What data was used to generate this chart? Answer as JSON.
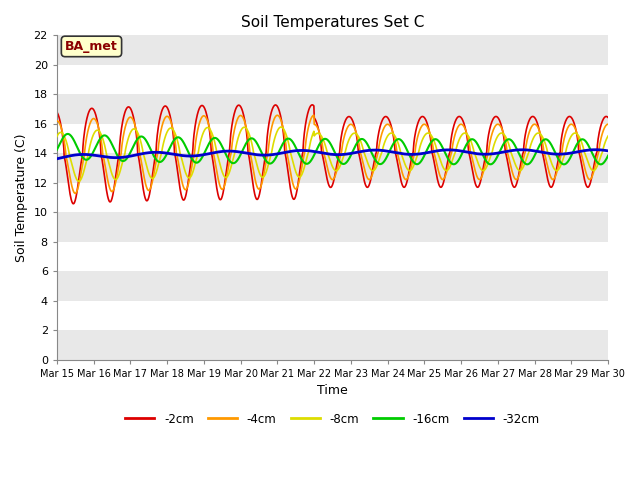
{
  "title": "Soil Temperatures Set C",
  "xlabel": "Time",
  "ylabel": "Soil Temperature (C)",
  "annotation": "BA_met",
  "ylim": [
    0,
    22
  ],
  "yticks": [
    0,
    2,
    4,
    6,
    8,
    10,
    12,
    14,
    16,
    18,
    20,
    22
  ],
  "fig_bg": "#ffffff",
  "plot_bg_bands": [
    [
      0,
      2,
      "#e8e8e8"
    ],
    [
      2,
      4,
      "#ffffff"
    ],
    [
      4,
      6,
      "#e8e8e8"
    ],
    [
      6,
      8,
      "#ffffff"
    ],
    [
      8,
      10,
      "#e8e8e8"
    ],
    [
      10,
      12,
      "#ffffff"
    ],
    [
      12,
      14,
      "#e8e8e8"
    ],
    [
      14,
      16,
      "#ffffff"
    ],
    [
      16,
      18,
      "#e8e8e8"
    ],
    [
      18,
      20,
      "#ffffff"
    ],
    [
      20,
      22,
      "#e8e8e8"
    ]
  ],
  "series_colors": [
    "#dd0000",
    "#ff9900",
    "#dddd00",
    "#00cc00",
    "#0000cc"
  ],
  "series_labels": [
    "-2cm",
    "-4cm",
    "-8cm",
    "-16cm",
    "-32cm"
  ],
  "series_linewidths": [
    1.2,
    1.2,
    1.2,
    1.5,
    2.0
  ],
  "x_start": 15,
  "x_end": 30,
  "xtick_positions": [
    15,
    16,
    17,
    18,
    19,
    20,
    21,
    22,
    23,
    24,
    25,
    26,
    27,
    28,
    29,
    30
  ],
  "xtick_labels": [
    "Mar 15",
    "Mar 16",
    "Mar 17",
    "Mar 18",
    "Mar 19",
    "Mar 20",
    "Mar 21",
    "Mar 22",
    "Mar 23",
    "Mar 24",
    "Mar 25",
    "Mar 26",
    "Mar 27",
    "Mar 28",
    "Mar 29",
    "Mar 30"
  ],
  "annotation_fg": "#8b0000",
  "annotation_bg": "#ffffcc",
  "annotation_border": "#333333"
}
